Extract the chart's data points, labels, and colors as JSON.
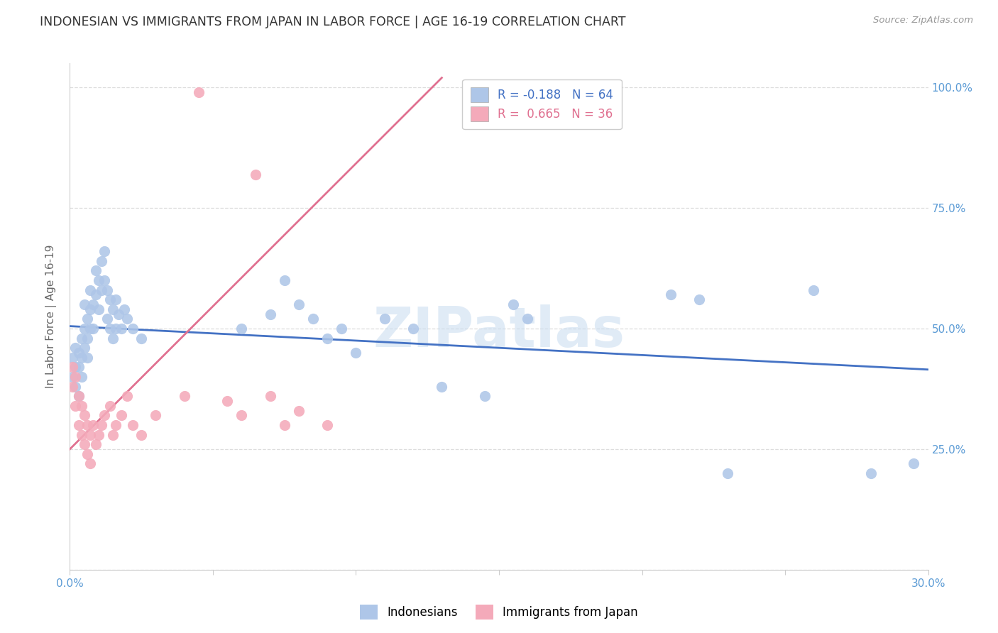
{
  "title": "INDONESIAN VS IMMIGRANTS FROM JAPAN IN LABOR FORCE | AGE 16-19 CORRELATION CHART",
  "source": "Source: ZipAtlas.com",
  "ylabel": "In Labor Force | Age 16-19",
  "xlim": [
    0.0,
    0.3
  ],
  "ylim": [
    0.0,
    1.05
  ],
  "yticks": [
    0.0,
    0.25,
    0.5,
    0.75,
    1.0
  ],
  "xticks": [
    0.0,
    0.05,
    0.1,
    0.15,
    0.2,
    0.25,
    0.3
  ],
  "blue_R": -0.188,
  "blue_N": 64,
  "pink_R": 0.665,
  "pink_N": 36,
  "blue_line_x": [
    0.0,
    0.3
  ],
  "blue_line_y": [
    0.505,
    0.415
  ],
  "pink_line_x": [
    0.0,
    0.13
  ],
  "pink_line_y": [
    0.25,
    1.02
  ],
  "blue_scatter_x": [
    0.001,
    0.001,
    0.002,
    0.002,
    0.002,
    0.003,
    0.003,
    0.003,
    0.004,
    0.004,
    0.004,
    0.005,
    0.005,
    0.005,
    0.006,
    0.006,
    0.006,
    0.007,
    0.007,
    0.007,
    0.008,
    0.008,
    0.009,
    0.009,
    0.01,
    0.01,
    0.011,
    0.011,
    0.012,
    0.012,
    0.013,
    0.013,
    0.014,
    0.014,
    0.015,
    0.015,
    0.016,
    0.016,
    0.017,
    0.018,
    0.019,
    0.02,
    0.022,
    0.025,
    0.06,
    0.07,
    0.075,
    0.08,
    0.085,
    0.09,
    0.095,
    0.1,
    0.11,
    0.12,
    0.13,
    0.145,
    0.155,
    0.16,
    0.21,
    0.22,
    0.23,
    0.26,
    0.28,
    0.295
  ],
  "blue_scatter_y": [
    0.4,
    0.44,
    0.38,
    0.42,
    0.46,
    0.36,
    0.42,
    0.45,
    0.4,
    0.44,
    0.48,
    0.55,
    0.5,
    0.46,
    0.52,
    0.48,
    0.44,
    0.58,
    0.54,
    0.5,
    0.55,
    0.5,
    0.62,
    0.57,
    0.6,
    0.54,
    0.64,
    0.58,
    0.66,
    0.6,
    0.58,
    0.52,
    0.56,
    0.5,
    0.54,
    0.48,
    0.56,
    0.5,
    0.53,
    0.5,
    0.54,
    0.52,
    0.5,
    0.48,
    0.5,
    0.53,
    0.6,
    0.55,
    0.52,
    0.48,
    0.5,
    0.45,
    0.52,
    0.5,
    0.38,
    0.36,
    0.55,
    0.52,
    0.57,
    0.56,
    0.2,
    0.58,
    0.2,
    0.22
  ],
  "pink_scatter_x": [
    0.001,
    0.001,
    0.002,
    0.002,
    0.003,
    0.003,
    0.004,
    0.004,
    0.005,
    0.005,
    0.006,
    0.006,
    0.007,
    0.007,
    0.008,
    0.009,
    0.01,
    0.011,
    0.012,
    0.014,
    0.015,
    0.016,
    0.018,
    0.02,
    0.022,
    0.025,
    0.03,
    0.04,
    0.045,
    0.055,
    0.06,
    0.065,
    0.07,
    0.075,
    0.08,
    0.09
  ],
  "pink_scatter_y": [
    0.38,
    0.42,
    0.34,
    0.4,
    0.3,
    0.36,
    0.28,
    0.34,
    0.26,
    0.32,
    0.24,
    0.3,
    0.22,
    0.28,
    0.3,
    0.26,
    0.28,
    0.3,
    0.32,
    0.34,
    0.28,
    0.3,
    0.32,
    0.36,
    0.3,
    0.28,
    0.32,
    0.36,
    0.99,
    0.35,
    0.32,
    0.82,
    0.36,
    0.3,
    0.33,
    0.3
  ],
  "blue_line_color": "#4472C4",
  "pink_line_color": "#E07090",
  "blue_dot_color": "#AEC6E8",
  "pink_dot_color": "#F4AABA",
  "bg_color": "#FFFFFF",
  "grid_color": "#DDDDDD",
  "title_color": "#333333",
  "axis_label_color": "#5B9BD5",
  "watermark_text": "ZIPatlas",
  "watermark_color": "#C8DCF0"
}
